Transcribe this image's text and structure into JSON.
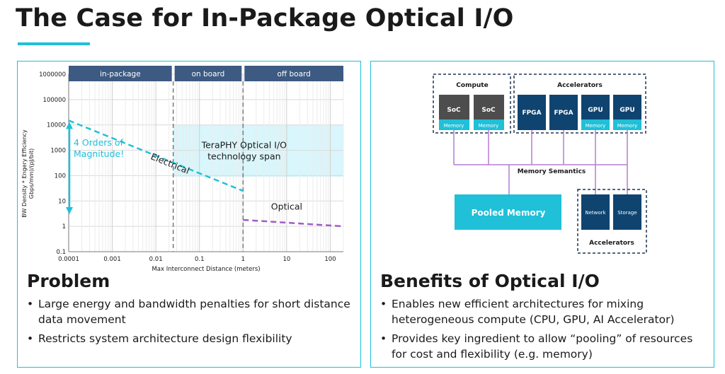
{
  "title": "The Case for In-Package Optical I/O",
  "left_panel": {
    "heading": "Problem",
    "bullets": [
      "Large energy and bandwidth penalties for short distance data movement",
      "Restricts system architecture design flexibility"
    ]
  },
  "right_panel": {
    "heading": "Benefits of Optical I/O",
    "bullets": [
      "Enables new efficient architectures for mixing heterogeneous compute (CPU, GPU, AI Accelerator)",
      "Provides key ingredient to allow “pooling” of resources for cost and flexibility (e.g. memory)"
    ]
  },
  "chart_data": {
    "type": "line",
    "xlabel": "Max Interconnect Distance (meters)",
    "ylabel": "BW Density * Engery Efficiency",
    "ylabel_units": "Gbps/mm)/(pJ/bit)",
    "x_scale": "log",
    "y_scale": "log",
    "xlim": [
      0.0001,
      200
    ],
    "ylim": [
      0.1,
      1000000
    ],
    "x_ticks": [
      "0.0001",
      "0.001",
      "0.01",
      "0.1",
      "1",
      "10",
      "100"
    ],
    "y_ticks": [
      "1000000",
      "100000",
      "10000",
      "1000",
      "100",
      "10",
      "1",
      "0.1"
    ],
    "regions": [
      {
        "label": "in-package",
        "from": 0.0001,
        "to": 0.025
      },
      {
        "label": "on board",
        "from": 0.025,
        "to": 1
      },
      {
        "label": "off board",
        "from": 1,
        "to": 200
      }
    ],
    "dividers": [
      0.025,
      1
    ],
    "series": [
      {
        "name": "Electrical",
        "x": [
          0.0001,
          1
        ],
        "y": [
          15000,
          25
        ],
        "color": "#1fc0d8",
        "style": "dashed"
      },
      {
        "name": "Optical",
        "x": [
          1,
          200
        ],
        "y": [
          1.8,
          1.0
        ],
        "color": "#a05cc8",
        "style": "dashed"
      }
    ],
    "span_box": {
      "label_line1": "TeraPHY Optical I/O",
      "label_line2": "technology span",
      "x_from": 0.025,
      "x_to": 200,
      "y_from": 90,
      "y_to": 10000
    },
    "arrow": {
      "label_line1": "4 Orders of",
      "label_line2": "Magnitude!",
      "x": 0.0001,
      "y_from": 15000,
      "y_to": 3
    },
    "colors": {
      "header_band": "#3d5a82",
      "electrical": "#1fc0d8",
      "optical": "#a05cc8",
      "span_fill": "#d8f6fb",
      "grid": "#d9d9d9"
    }
  },
  "diagram": {
    "compute_label": "Compute",
    "accelerators_top_label": "Accelerators",
    "accelerators_bottom_label": "Accelerators",
    "memory_semantics_label": "Memory Semantics",
    "pooled_memory_label": "Pooled Memory",
    "compute_units": [
      {
        "name": "SoC",
        "sub": "Memory"
      },
      {
        "name": "SoC",
        "sub": "Memory"
      }
    ],
    "accel_units": [
      {
        "name": "FPGA",
        "sub": ""
      },
      {
        "name": "FPGA",
        "sub": ""
      },
      {
        "name": "GPU",
        "sub": "Memory"
      },
      {
        "name": "GPU",
        "sub": "Memory"
      }
    ],
    "bottom_units": [
      {
        "name": "Network"
      },
      {
        "name": "Storage"
      }
    ],
    "colors": {
      "soc": "#4d4d4d",
      "accel": "#0f4470",
      "memory": "#1fc0d8",
      "link": "#b57bd4",
      "border": "#1b3350"
    }
  }
}
